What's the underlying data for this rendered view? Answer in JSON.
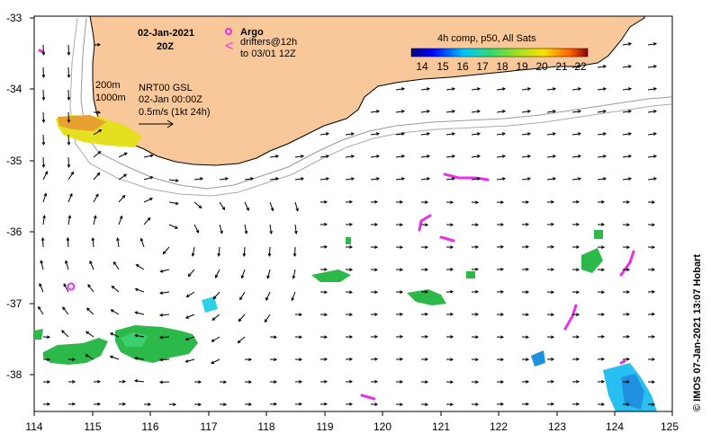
{
  "map": {
    "date": "02-Jan-2021",
    "time": "20Z",
    "argo_label": "Argo",
    "drifters_line1": "drifters@12h",
    "drifters_line2": "to 03/01 12Z",
    "colorbar_title": "4h comp, p50, All Sats",
    "colorbar_ticks": [
      "14",
      "15",
      "16",
      "17",
      "18",
      "19",
      "20",
      "21",
      "22"
    ],
    "depth_200": "200m",
    "depth_1000": "1000m",
    "product": "NRT00 GSL",
    "product_time": "02-Jan 00:00Z",
    "scale_label": "0.5m/s (1kt 24h)",
    "credit": "© IMOS 07-Jan-2021 13:07 Hobart",
    "lon_ticks": [
      "114",
      "115",
      "116",
      "117",
      "118",
      "119",
      "120",
      "121",
      "122",
      "123",
      "124",
      "125"
    ],
    "lat_ticks": [
      "-33",
      "-34",
      "-35",
      "-36",
      "-37",
      "-38"
    ],
    "colors": {
      "land": "#f9c89a",
      "argo": "#e830e8",
      "drifter": "#e830e8",
      "sst_green": "#2db84a",
      "sst_yellow": "#e4e020",
      "sst_blue": "#2090e0"
    }
  }
}
